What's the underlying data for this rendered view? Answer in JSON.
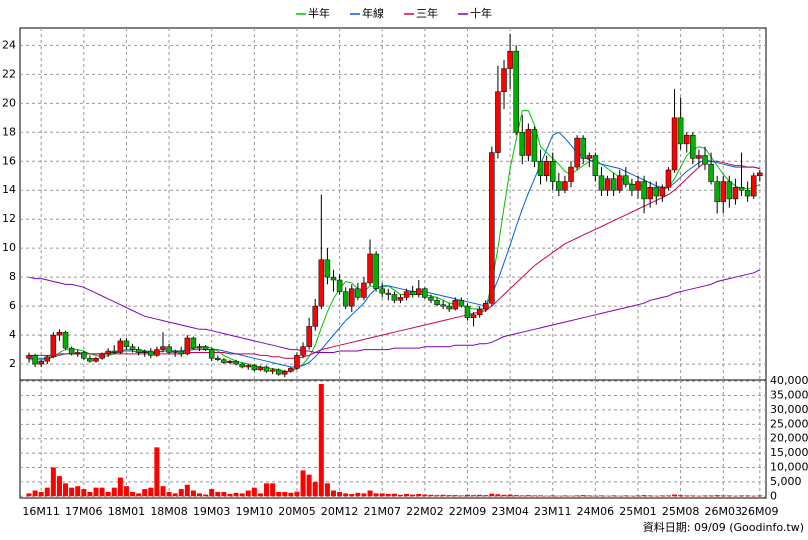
{
  "chart_data": {
    "type": "candlestick",
    "source": "資料日期: 09/09 (Goodinfo.tw)",
    "categories": [
      null,
      null,
      "16M11",
      null,
      null,
      null,
      null,
      null,
      null,
      "17M06",
      null,
      null,
      null,
      null,
      null,
      null,
      "18M01",
      null,
      null,
      null,
      null,
      null,
      null,
      "18M08",
      null,
      null,
      null,
      null,
      null,
      null,
      "19M03",
      null,
      null,
      null,
      null,
      null,
      null,
      "19M10",
      null,
      null,
      null,
      null,
      null,
      null,
      "20M05",
      null,
      null,
      null,
      null,
      null,
      null,
      "20M12",
      null,
      null,
      null,
      null,
      null,
      null,
      "21M07",
      null,
      null,
      null,
      null,
      null,
      null,
      "22M02",
      null,
      null,
      null,
      null,
      null,
      null,
      "22M09",
      null,
      null,
      null,
      null,
      null,
      null,
      "23M04",
      null,
      null,
      null,
      null,
      null,
      null,
      "23M11",
      null,
      null,
      null,
      null,
      null,
      null,
      "24M06",
      null,
      null,
      null,
      null,
      null,
      null,
      "25M01",
      null,
      null,
      null,
      null,
      null,
      null,
      "25M08",
      null,
      null,
      null,
      null,
      null,
      null,
      "26M03",
      null,
      null,
      null,
      null,
      null,
      "26M09"
    ],
    "open": [
      2.4,
      2.6,
      2.0,
      2.2,
      2.5,
      4.0,
      4.2,
      3.1,
      2.7,
      2.8,
      2.4,
      2.2,
      2.4,
      2.7,
      2.9,
      2.8,
      3.6,
      3.2,
      3.0,
      2.8,
      2.9,
      2.6,
      3.0,
      3.2,
      2.8,
      2.9,
      2.7,
      3.8,
      3.1,
      3.2,
      3.0,
      2.4,
      2.3,
      2.1,
      2.2,
      2.0,
      1.8,
      1.9,
      1.6,
      1.8,
      1.5,
      1.6,
      1.3,
      1.5,
      1.7,
      2.6,
      3.2,
      4.6,
      6.0,
      9.2,
      8.0,
      7.8,
      7.0,
      6.0,
      7.2,
      6.6,
      7.6,
      9.6,
      7.2,
      6.9,
      6.8,
      6.4,
      6.6,
      7.0,
      6.8,
      7.2,
      6.6,
      6.4,
      6.1,
      6.0,
      5.8,
      6.4,
      6.0,
      5.2,
      5.4,
      5.8,
      6.2,
      16.6,
      20.8,
      22.4,
      23.6,
      18.0,
      16.4,
      18.2,
      16.0,
      15.0,
      16.0,
      14.6,
      14.0,
      14.6,
      15.6,
      17.6,
      16.2,
      16.4,
      15.0,
      14.0,
      14.8,
      14.0,
      15.0,
      14.4,
      14.0,
      14.6,
      13.4,
      14.2,
      13.6,
      14.2,
      15.4,
      19.0,
      17.2,
      17.8,
      16.2,
      16.4,
      15.8,
      14.6,
      13.2,
      14.6,
      13.4,
      14.2,
      14.0,
      13.6,
      15.0
    ],
    "high": [
      2.8,
      2.7,
      2.3,
      2.6,
      4.2,
      4.4,
      4.3,
      3.2,
      3.0,
      2.9,
      2.6,
      2.5,
      2.8,
      3.1,
      3.3,
      3.8,
      3.8,
      3.4,
      3.2,
      3.0,
      3.1,
      3.2,
      4.2,
      3.4,
      3.0,
      3.2,
      4.0,
      3.9,
      3.4,
      3.3,
      3.1,
      2.6,
      2.4,
      2.3,
      2.3,
      2.1,
      2.0,
      2.0,
      1.9,
      1.9,
      1.7,
      1.7,
      1.6,
      1.8,
      2.8,
      3.5,
      5.2,
      6.5,
      13.7,
      10.0,
      8.5,
      8.2,
      7.3,
      7.5,
      7.6,
      8.0,
      10.6,
      9.8,
      7.6,
      7.2,
      7.0,
      6.8,
      7.2,
      7.4,
      7.8,
      7.3,
      6.8,
      6.6,
      6.4,
      6.2,
      6.6,
      6.6,
      6.2,
      5.6,
      6.0,
      6.4,
      17.0,
      22.6,
      23.0,
      24.8,
      24.0,
      19.2,
      18.6,
      18.4,
      16.8,
      16.4,
      16.6,
      15.2,
      15.0,
      16.0,
      17.8,
      17.8,
      16.6,
      16.6,
      15.6,
      15.0,
      15.2,
      15.4,
      15.6,
      14.8,
      15.0,
      15.0,
      14.6,
      14.6,
      14.4,
      15.6,
      21.0,
      20.4,
      18.0,
      18.0,
      16.8,
      17.0,
      16.6,
      15.0,
      15.0,
      15.0,
      14.8,
      16.6,
      14.6,
      15.2,
      15.4
    ],
    "low": [
      2.1,
      1.8,
      1.8,
      2.0,
      2.4,
      3.6,
      3.0,
      2.6,
      2.5,
      2.3,
      2.1,
      2.1,
      2.3,
      2.5,
      2.7,
      2.7,
      3.0,
      2.8,
      2.6,
      2.5,
      2.4,
      2.5,
      2.8,
      2.7,
      2.5,
      2.5,
      2.6,
      3.0,
      2.9,
      2.9,
      2.2,
      2.2,
      2.0,
      2.0,
      1.9,
      1.7,
      1.6,
      1.5,
      1.5,
      1.4,
      1.3,
      1.2,
      1.1,
      1.4,
      1.6,
      2.4,
      3.0,
      4.3,
      5.8,
      7.5,
      7.0,
      6.8,
      5.8,
      5.6,
      6.4,
      6.4,
      7.4,
      7.0,
      6.6,
      6.4,
      6.2,
      6.2,
      6.4,
      6.6,
      6.6,
      6.5,
      6.2,
      6.0,
      5.8,
      5.6,
      5.7,
      5.9,
      5.0,
      4.6,
      5.2,
      5.6,
      6.0,
      16.2,
      19.6,
      21.0,
      17.8,
      15.8,
      16.0,
      15.6,
      14.4,
      14.6,
      14.0,
      13.6,
      13.8,
      14.2,
      15.4,
      15.8,
      15.6,
      14.6,
      13.6,
      13.6,
      13.6,
      13.8,
      14.2,
      13.6,
      13.4,
      12.4,
      12.8,
      13.0,
      13.2,
      14.0,
      15.2,
      16.8,
      16.6,
      15.8,
      15.6,
      15.4,
      14.4,
      12.4,
      12.4,
      12.8,
      13.0,
      13.6,
      13.2,
      13.4,
      14.6
    ],
    "close": [
      2.6,
      2.0,
      2.2,
      2.5,
      4.0,
      4.2,
      3.1,
      2.7,
      2.8,
      2.4,
      2.2,
      2.4,
      2.7,
      2.9,
      2.8,
      3.6,
      3.2,
      3.0,
      2.8,
      2.9,
      2.6,
      3.0,
      3.2,
      2.8,
      2.9,
      2.7,
      3.8,
      3.1,
      3.2,
      3.0,
      2.4,
      2.3,
      2.1,
      2.2,
      2.0,
      1.8,
      1.9,
      1.6,
      1.8,
      1.5,
      1.6,
      1.3,
      1.5,
      1.7,
      2.6,
      3.2,
      4.6,
      6.0,
      9.2,
      8.0,
      7.8,
      7.0,
      6.0,
      7.2,
      6.6,
      7.6,
      9.6,
      7.2,
      6.9,
      6.8,
      6.4,
      6.6,
      7.0,
      6.8,
      7.2,
      6.6,
      6.4,
      6.1,
      6.0,
      5.8,
      6.4,
      6.0,
      5.2,
      5.4,
      5.8,
      6.2,
      16.6,
      20.8,
      22.4,
      23.6,
      18.0,
      16.4,
      18.2,
      16.0,
      15.0,
      16.0,
      14.6,
      14.0,
      14.6,
      15.6,
      17.6,
      16.2,
      16.4,
      15.0,
      14.0,
      14.8,
      14.0,
      15.0,
      14.4,
      14.0,
      14.6,
      13.4,
      14.2,
      13.6,
      14.2,
      15.4,
      19.0,
      17.2,
      17.8,
      16.2,
      16.4,
      15.8,
      14.6,
      13.2,
      14.6,
      13.4,
      14.2,
      14.0,
      13.6,
      15.0,
      15.2
    ],
    "up_color": "#ff0000",
    "down_color": "#00b000",
    "ylim": [
      0.9,
      25.2
    ],
    "yticks": [
      2,
      4,
      6,
      8,
      10,
      12,
      14,
      16,
      18,
      20,
      22,
      24
    ],
    "grid": true,
    "series": [
      {
        "name": "半年",
        "color": "#00c000",
        "values": [
          2.3,
          2.3,
          2.3,
          2.3,
          2.5,
          2.8,
          3.0,
          3.0,
          3.0,
          2.9,
          2.7,
          2.6,
          2.5,
          2.6,
          2.7,
          2.9,
          3.0,
          3.0,
          3.0,
          2.9,
          2.8,
          2.8,
          2.9,
          2.9,
          2.9,
          2.9,
          3.0,
          3.1,
          3.2,
          3.2,
          3.1,
          2.9,
          2.6,
          2.4,
          2.2,
          2.1,
          2.0,
          1.9,
          1.8,
          1.7,
          1.7,
          1.6,
          1.5,
          1.5,
          1.7,
          2.0,
          2.5,
          3.3,
          4.5,
          5.6,
          6.5,
          7.2,
          7.7,
          7.6,
          7.2,
          7.0,
          7.4,
          7.3,
          7.3,
          7.4,
          7.1,
          6.8,
          6.8,
          6.8,
          6.8,
          6.8,
          6.7,
          6.6,
          6.4,
          6.2,
          6.2,
          6.1,
          5.9,
          5.8,
          5.8,
          5.8,
          7.6,
          10.0,
          12.8,
          15.5,
          17.5,
          19.5,
          19.5,
          18.5,
          17.0,
          16.6,
          16.2,
          15.8,
          15.3,
          15.1,
          15.4,
          15.7,
          16.0,
          16.1,
          15.8,
          15.5,
          15.2,
          14.9,
          14.6,
          14.4,
          14.4,
          14.2,
          14.1,
          14.0,
          14.0,
          14.2,
          14.8,
          15.6,
          16.4,
          16.8,
          17.0,
          16.9,
          16.3,
          15.7,
          15.1,
          14.6,
          14.3,
          14.1,
          14.1,
          14.2,
          14.4
        ]
      },
      {
        "name": "年線",
        "color": "#0060e0",
        "values": [
          2.4,
          2.4,
          2.4,
          2.4,
          2.5,
          2.6,
          2.7,
          2.7,
          2.7,
          2.7,
          2.7,
          2.7,
          2.7,
          2.8,
          2.8,
          2.9,
          2.9,
          2.9,
          2.8,
          2.8,
          2.8,
          2.8,
          2.9,
          2.9,
          2.9,
          2.9,
          2.9,
          3.0,
          3.0,
          3.0,
          3.0,
          3.0,
          2.9,
          2.8,
          2.7,
          2.6,
          2.5,
          2.4,
          2.3,
          2.2,
          2.1,
          2.0,
          1.9,
          1.8,
          1.8,
          1.9,
          2.1,
          2.5,
          3.0,
          3.5,
          4.0,
          4.5,
          5.0,
          5.4,
          5.8,
          6.2,
          6.8,
          7.2,
          7.4,
          7.4,
          7.3,
          7.2,
          7.1,
          7.0,
          7.0,
          7.0,
          6.9,
          6.8,
          6.7,
          6.6,
          6.5,
          6.4,
          6.3,
          6.2,
          6.1,
          6.0,
          6.8,
          7.8,
          9.0,
          10.2,
          11.5,
          12.7,
          13.8,
          14.8,
          15.8,
          16.8,
          17.8,
          18.0,
          17.6,
          17.1,
          16.6,
          16.3,
          16.1,
          15.9,
          15.8,
          15.7,
          15.6,
          15.5,
          15.3,
          15.1,
          14.9,
          14.7,
          14.5,
          14.3,
          14.2,
          14.2,
          14.5,
          14.9,
          15.3,
          15.6,
          15.9,
          16.1,
          16.0,
          15.9,
          15.8,
          15.7,
          15.6,
          15.6,
          15.6,
          15.6,
          15.5
        ]
      },
      {
        "name": "三年",
        "color": "#d0004a",
        "values": [
          2.6,
          2.6,
          2.6,
          2.6,
          2.6,
          2.7,
          2.7,
          2.7,
          2.7,
          2.7,
          2.7,
          2.7,
          2.7,
          2.7,
          2.7,
          2.7,
          2.7,
          2.7,
          2.7,
          2.7,
          2.7,
          2.7,
          2.7,
          2.7,
          2.7,
          2.7,
          2.8,
          2.8,
          2.8,
          2.8,
          2.8,
          2.8,
          2.8,
          2.7,
          2.7,
          2.7,
          2.7,
          2.7,
          2.6,
          2.6,
          2.5,
          2.5,
          2.4,
          2.4,
          2.4,
          2.5,
          2.6,
          2.8,
          3.0,
          3.1,
          3.2,
          3.3,
          3.4,
          3.5,
          3.6,
          3.7,
          3.8,
          3.9,
          4.0,
          4.1,
          4.2,
          4.3,
          4.4,
          4.5,
          4.6,
          4.7,
          4.8,
          4.9,
          5.0,
          5.1,
          5.2,
          5.3,
          5.4,
          5.5,
          5.6,
          5.7,
          6.0,
          6.4,
          6.8,
          7.2,
          7.6,
          8.0,
          8.4,
          8.8,
          9.1,
          9.4,
          9.7,
          10.0,
          10.3,
          10.5,
          10.7,
          10.9,
          11.1,
          11.3,
          11.5,
          11.7,
          11.9,
          12.1,
          12.3,
          12.5,
          12.7,
          12.9,
          13.1,
          13.3,
          13.5,
          13.7,
          14.0,
          14.4,
          14.8,
          15.2,
          15.6,
          15.9,
          16.0,
          16.0,
          15.9,
          15.8,
          15.7,
          15.7,
          15.6,
          15.6,
          15.5
        ]
      },
      {
        "name": "十年",
        "color": "#8000c0",
        "values": [
          8.0,
          7.9,
          7.9,
          7.8,
          7.7,
          7.6,
          7.5,
          7.5,
          7.4,
          7.3,
          7.1,
          6.9,
          6.7,
          6.5,
          6.3,
          6.1,
          5.9,
          5.7,
          5.5,
          5.3,
          5.2,
          5.1,
          5.0,
          4.9,
          4.8,
          4.7,
          4.6,
          4.5,
          4.4,
          4.4,
          4.3,
          4.2,
          4.1,
          4.0,
          3.9,
          3.8,
          3.7,
          3.6,
          3.5,
          3.4,
          3.3,
          3.2,
          3.1,
          3.0,
          3.0,
          2.9,
          2.9,
          2.8,
          2.8,
          2.8,
          2.8,
          2.9,
          2.9,
          2.9,
          2.9,
          3.0,
          3.0,
          3.0,
          3.0,
          3.0,
          3.1,
          3.1,
          3.1,
          3.1,
          3.1,
          3.2,
          3.2,
          3.2,
          3.2,
          3.2,
          3.3,
          3.3,
          3.3,
          3.3,
          3.4,
          3.4,
          3.5,
          3.7,
          3.9,
          4.0,
          4.1,
          4.2,
          4.3,
          4.4,
          4.5,
          4.6,
          4.7,
          4.8,
          4.9,
          5.0,
          5.1,
          5.2,
          5.3,
          5.4,
          5.5,
          5.6,
          5.7,
          5.8,
          5.9,
          6.0,
          6.1,
          6.2,
          6.4,
          6.5,
          6.6,
          6.7,
          6.9,
          7.0,
          7.1,
          7.2,
          7.3,
          7.4,
          7.5,
          7.7,
          7.8,
          7.9,
          8.0,
          8.1,
          8.2,
          8.3,
          8.5
        ]
      }
    ],
    "volume": {
      "color": "#ff0000",
      "ylim": [
        -600,
        40400
      ],
      "yticks": [
        0,
        {
          "value": 5000,
          "label": "5,000"
        },
        {
          "value": 10000,
          "label": "10,000"
        },
        {
          "value": 15000,
          "label": "15,000"
        },
        {
          "value": 20000,
          "label": "20,000"
        },
        {
          "value": 25000,
          "label": "25,000"
        },
        {
          "value": 30000,
          "label": "30,000"
        },
        {
          "value": 35000,
          "label": "35,000"
        },
        {
          "value": 40000,
          "label": "40,000"
        }
      ],
      "values": [
        1000,
        2000,
        1500,
        3000,
        10000,
        7000,
        4500,
        3000,
        3500,
        2500,
        1500,
        3000,
        3000,
        1500,
        3000,
        6500,
        3500,
        1500,
        1000,
        2500,
        3000,
        17000,
        3500,
        1500,
        1000,
        2500,
        4000,
        2000,
        1000,
        600,
        2500,
        1500,
        1500,
        800,
        1200,
        1000,
        2000,
        3000,
        1000,
        4500,
        4500,
        1500,
        1500,
        1200,
        1600,
        9000,
        7500,
        5000,
        39000,
        4500,
        2000,
        1500,
        1000,
        800,
        1200,
        1000,
        2000,
        1000,
        1000,
        800,
        900,
        500,
        800,
        600,
        800,
        600,
        500,
        400,
        500,
        400,
        400,
        300,
        500,
        400,
        500,
        400,
        900,
        700,
        500,
        600,
        400,
        300,
        400,
        300,
        300,
        200,
        300,
        200,
        300,
        200,
        300,
        400,
        300,
        200,
        300,
        200,
        300,
        200,
        300,
        200,
        300,
        400,
        300,
        200,
        300,
        300,
        600,
        400,
        300,
        300,
        200,
        300,
        300,
        400,
        300,
        300,
        200,
        300,
        300,
        200,
        300
      ]
    }
  }
}
